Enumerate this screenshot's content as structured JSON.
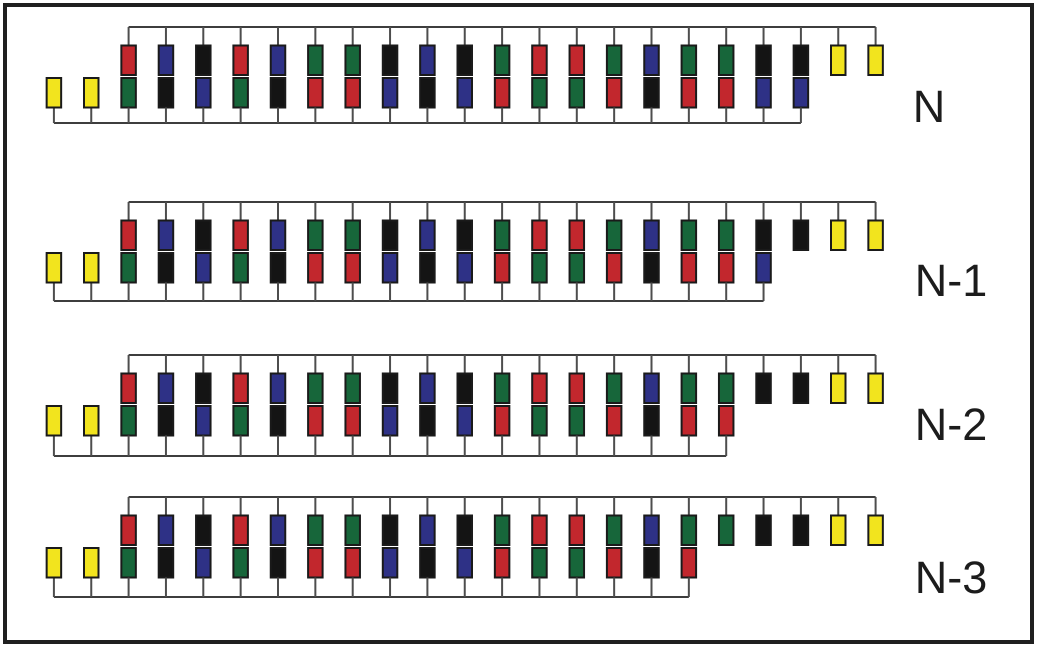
{
  "diagram": {
    "rows": [
      {
        "label": "N",
        "missing_bottom_count": 0
      },
      {
        "label": "N-1",
        "missing_bottom_count": 1
      },
      {
        "label": "N-2",
        "missing_bottom_count": 2
      },
      {
        "label": "N-3",
        "missing_bottom_count": 3
      }
    ],
    "left_singles": [
      "yellow",
      "yellow"
    ],
    "right_singles": [
      "yellow",
      "yellow"
    ],
    "pairs": [
      {
        "top": "red",
        "bottom": "green"
      },
      {
        "top": "blue",
        "bottom": "black"
      },
      {
        "top": "black",
        "bottom": "blue"
      },
      {
        "top": "red",
        "bottom": "green"
      },
      {
        "top": "blue",
        "bottom": "black"
      },
      {
        "top": "green",
        "bottom": "red"
      },
      {
        "top": "green",
        "bottom": "red"
      },
      {
        "top": "black",
        "bottom": "blue"
      },
      {
        "top": "blue",
        "bottom": "black"
      },
      {
        "top": "black",
        "bottom": "blue"
      },
      {
        "top": "green",
        "bottom": "red"
      },
      {
        "top": "red",
        "bottom": "green"
      },
      {
        "top": "red",
        "bottom": "green"
      },
      {
        "top": "green",
        "bottom": "red"
      },
      {
        "top": "blue",
        "bottom": "black"
      },
      {
        "top": "green",
        "bottom": "red"
      },
      {
        "top": "green",
        "bottom": "red"
      },
      {
        "top": "black",
        "bottom": "blue"
      },
      {
        "top": "black",
        "bottom": "blue"
      }
    ],
    "colors": {
      "red": "#c2272d",
      "green": "#17663a",
      "blue": "#2e3186",
      "black": "#141414",
      "yellow": "#f2e41e"
    }
  }
}
